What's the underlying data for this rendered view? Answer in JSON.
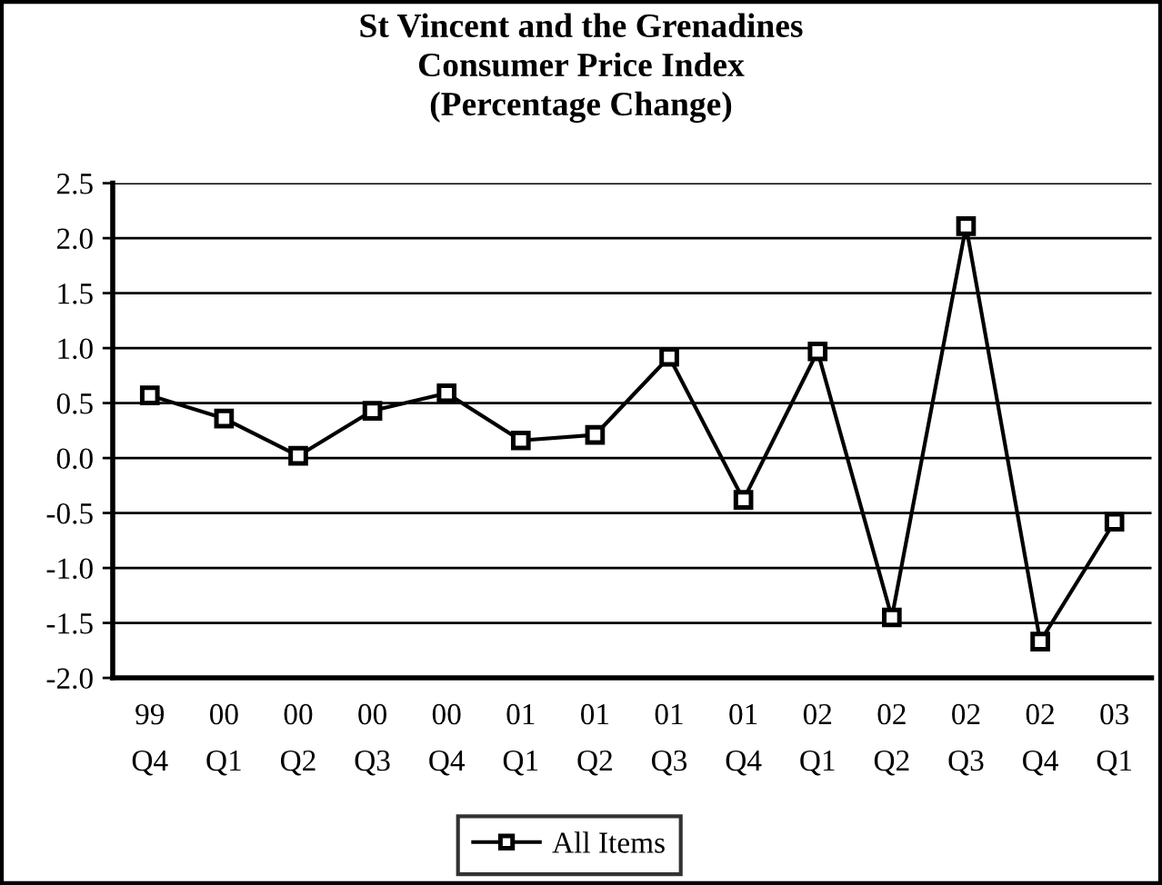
{
  "chart_data": {
    "type": "line",
    "title": "St Vincent and the Grenadines\nConsumer Price Index\n(Percentage Change)",
    "categories": [
      "99\nQ4",
      "00\nQ1",
      "00\nQ2",
      "00\nQ3",
      "00\nQ4",
      "01\nQ1",
      "01\nQ2",
      "01\nQ3",
      "01\nQ4",
      "02\nQ1",
      "02\nQ2",
      "02\nQ3",
      "02\nQ4",
      "03\nQ1"
    ],
    "series": [
      {
        "name": "All Items",
        "color": "#000000",
        "values": [
          0.57,
          0.36,
          0.02,
          0.43,
          0.59,
          0.16,
          0.21,
          0.92,
          -0.38,
          0.97,
          -1.45,
          2.11,
          -1.67,
          -0.58
        ]
      }
    ],
    "ylim": [
      -2.0,
      2.5
    ],
    "yticks": [
      {
        "value": -2.0,
        "label": "-2.0"
      },
      {
        "value": -1.5,
        "label": "-1.5"
      },
      {
        "value": -1.0,
        "label": "-1.0"
      },
      {
        "value": -0.5,
        "label": "-0.5"
      },
      {
        "value": 0,
        "label": "0.0"
      },
      {
        "value": 0.5,
        "label": "0.5"
      },
      {
        "value": 1.0,
        "label": "1.0"
      },
      {
        "value": 1.5,
        "label": "1.5"
      },
      {
        "value": 2.0,
        "label": "2.0"
      },
      {
        "value": 2.5,
        "label": "2.5"
      }
    ],
    "grid": "y",
    "legend": "bottom",
    "marker": "square",
    "line_style": "solid"
  }
}
